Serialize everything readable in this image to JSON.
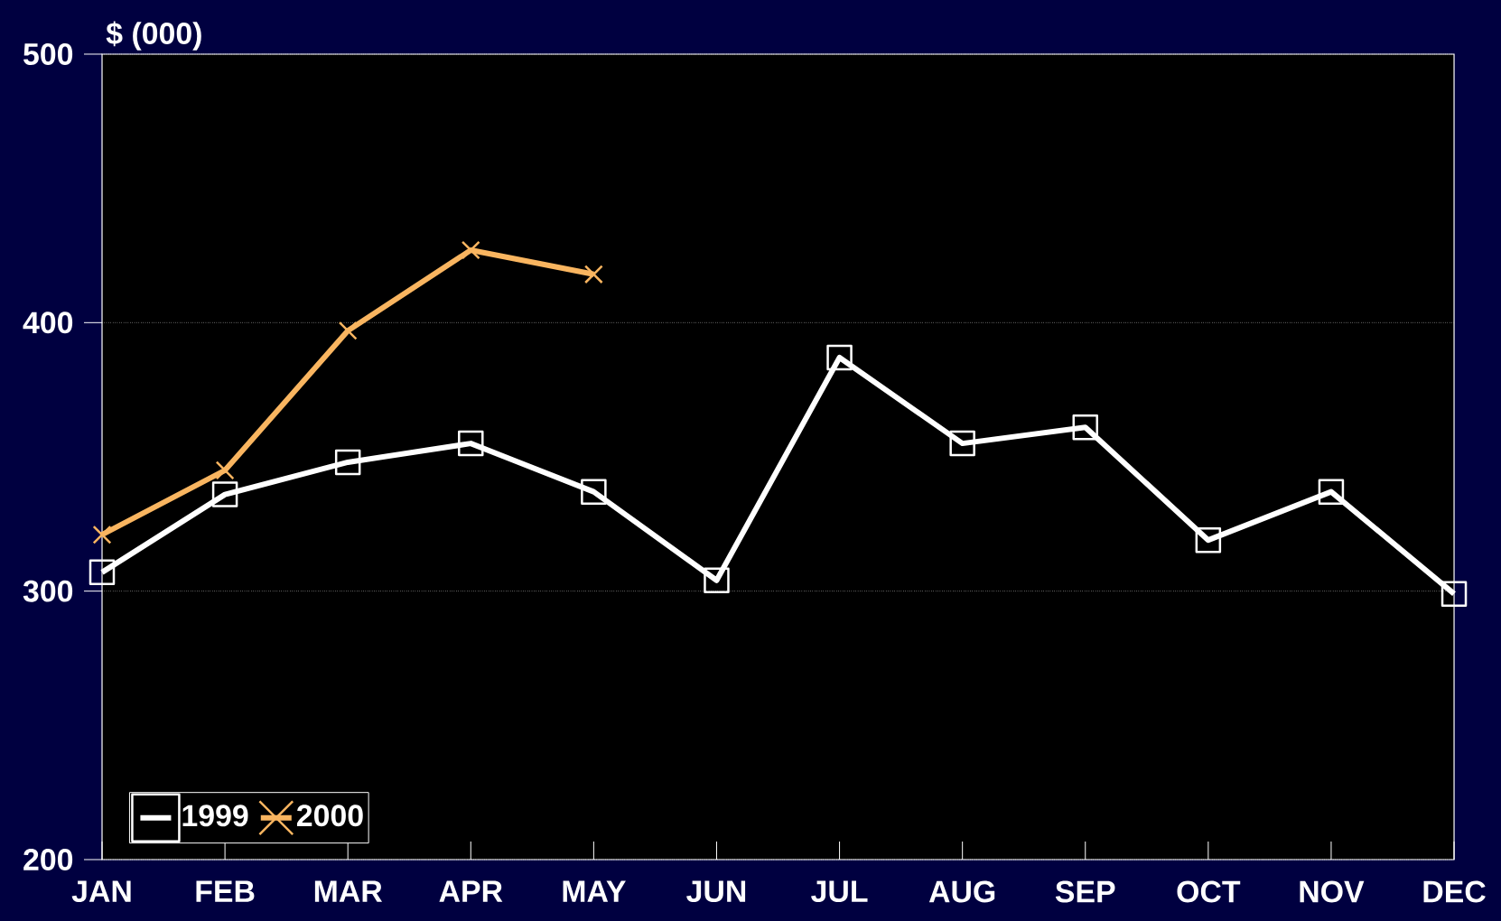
{
  "chart_data": {
    "type": "line",
    "ylabel": "$ (000)",
    "categories": [
      "JAN",
      "FEB",
      "MAR",
      "APR",
      "MAY",
      "JUN",
      "JUL",
      "AUG",
      "SEP",
      "OCT",
      "NOV",
      "DEC"
    ],
    "series": [
      {
        "name": "1999",
        "color": "#ffffff",
        "marker": "square",
        "values": [
          307,
          336,
          348,
          355,
          337,
          304,
          387,
          355,
          361,
          319,
          337,
          299
        ]
      },
      {
        "name": "2000",
        "color": "#f9b560",
        "marker": "cross",
        "values": [
          321,
          345,
          397,
          427,
          418,
          null,
          null,
          null,
          null,
          null,
          null,
          null
        ]
      }
    ],
    "ylim": [
      200,
      500
    ],
    "yticks": [
      200,
      300,
      400,
      500
    ],
    "grid": "y",
    "legend": "bottom left",
    "line_style": "solid"
  }
}
